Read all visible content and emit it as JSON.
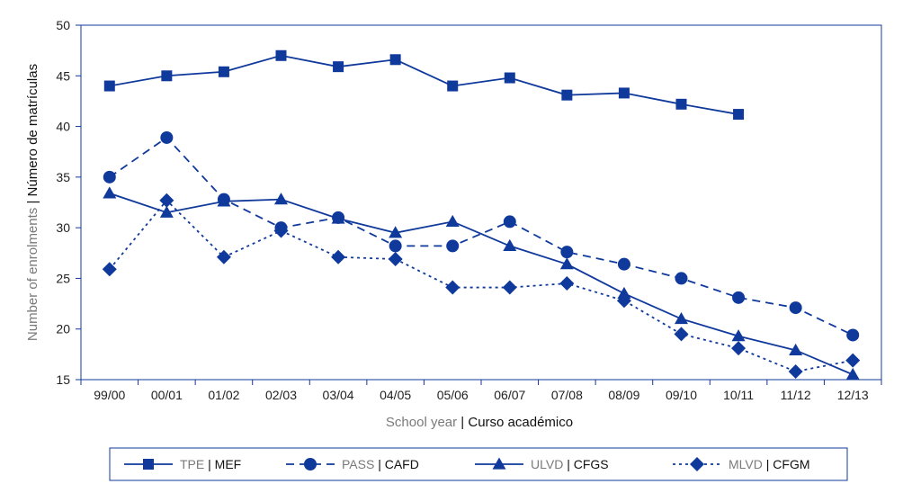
{
  "chart_data": {
    "type": "line",
    "categories": [
      "99/00",
      "00/01",
      "01/02",
      "02/03",
      "03/04",
      "04/05",
      "05/06",
      "06/07",
      "07/08",
      "08/09",
      "09/10",
      "10/11",
      "11/12",
      "12/13"
    ],
    "ylim": [
      15,
      50
    ],
    "yticks": [
      15,
      20,
      25,
      30,
      35,
      40,
      45,
      50
    ],
    "ylabel_en": "Number of enrolments",
    "ylabel_sep": "|",
    "ylabel_es": "Número de matrículas",
    "xlabel_en": "School year",
    "xlabel_sep": "|",
    "xlabel_es": "Curso académico",
    "grid": false,
    "legend_position": "bottom",
    "color": "#10399c",
    "series": [
      {
        "name_en": "TPE",
        "name_es": "MEF",
        "marker": "square",
        "dash": "solid",
        "values": [
          44,
          45,
          45.4,
          47,
          45.9,
          46.6,
          44,
          44.8,
          43.1,
          43.3,
          42.2,
          41.2,
          null,
          null
        ]
      },
      {
        "name_en": "PASS",
        "name_es": "CAFD",
        "marker": "circle",
        "dash": "dashed",
        "values": [
          35,
          38.9,
          32.8,
          30,
          31,
          28.2,
          28.2,
          30.6,
          27.6,
          26.4,
          25,
          23.1,
          22.1,
          19.4
        ]
      },
      {
        "name_en": "ULVD",
        "name_es": "CFGS",
        "marker": "triangle",
        "dash": "solid",
        "values": [
          33.4,
          31.5,
          32.6,
          32.8,
          30.9,
          29.5,
          30.6,
          28.2,
          26.4,
          23.5,
          21,
          19.3,
          17.9,
          15.5
        ]
      },
      {
        "name_en": "MLVD",
        "name_es": "CFGM",
        "marker": "diamond",
        "dash": "dotted",
        "values": [
          25.9,
          32.7,
          27.1,
          29.7,
          27.1,
          26.9,
          24.1,
          24.1,
          24.5,
          22.8,
          19.5,
          18.1,
          15.8,
          16.9
        ]
      }
    ]
  }
}
